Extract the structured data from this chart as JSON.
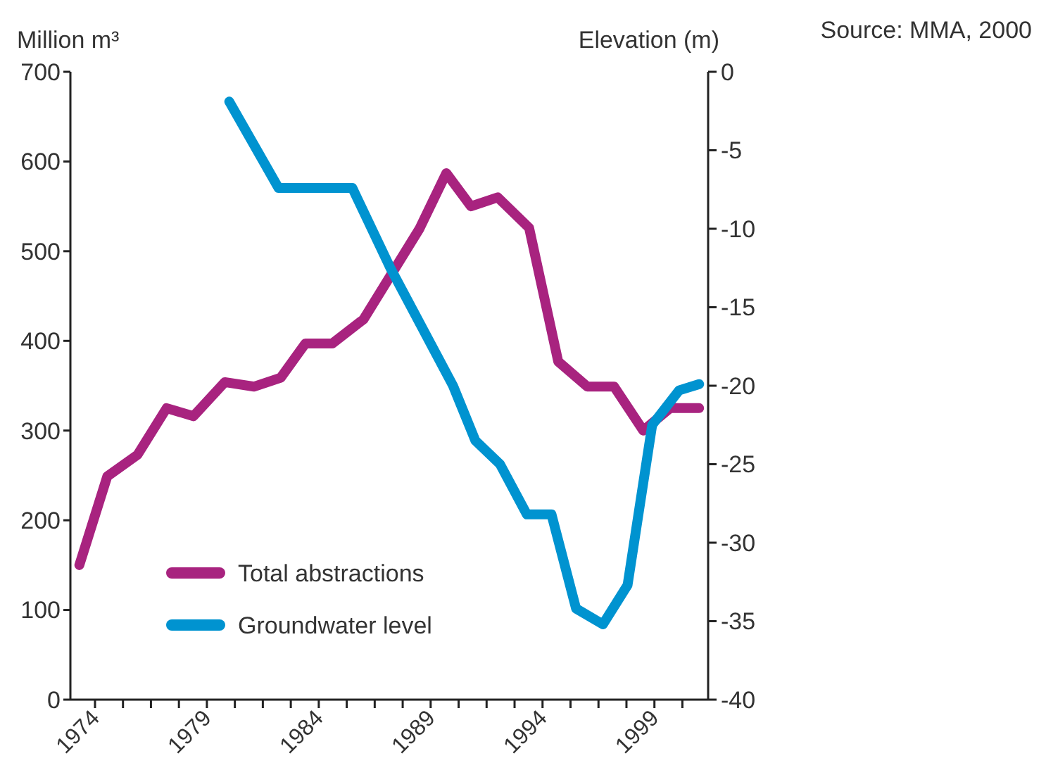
{
  "chart_data": {
    "type": "line",
    "ylabel": "Million m³",
    "y2label": "Elevation (m)",
    "annotations": [
      "Source: MMA, 2000"
    ],
    "xlim": [
      1972.9,
      2001.4
    ],
    "xticks": [
      {
        "value": 1974,
        "label": "1974"
      },
      {
        "value": 1975.25,
        "label": null
      },
      {
        "value": 1976.5,
        "label": null
      },
      {
        "value": 1977.75,
        "label": null
      },
      {
        "value": 1979,
        "label": "1979"
      },
      {
        "value": 1980.25,
        "label": null
      },
      {
        "value": 1981.5,
        "label": null
      },
      {
        "value": 1982.75,
        "label": null
      },
      {
        "value": 1984,
        "label": "1984"
      },
      {
        "value": 1985.25,
        "label": null
      },
      {
        "value": 1986.5,
        "label": null
      },
      {
        "value": 1987.75,
        "label": null
      },
      {
        "value": 1989,
        "label": "1989"
      },
      {
        "value": 1990.25,
        "label": null
      },
      {
        "value": 1991.5,
        "label": null
      },
      {
        "value": 1992.75,
        "label": null
      },
      {
        "value": 1994,
        "label": "1994"
      },
      {
        "value": 1995.25,
        "label": null
      },
      {
        "value": 1996.5,
        "label": null
      },
      {
        "value": 1997.75,
        "label": null
      },
      {
        "value": 1999,
        "label": "1999"
      },
      {
        "value": 2000.25,
        "label": null
      }
    ],
    "ylim": [
      0,
      700
    ],
    "yticks": [
      0,
      100,
      200,
      300,
      400,
      500,
      600,
      700
    ],
    "y2lim": [
      -40,
      0
    ],
    "y2ticks": [
      -40,
      -35,
      -30,
      -25,
      -20,
      -15,
      -10,
      -5,
      0
    ],
    "legend": "bottom left",
    "grid": false,
    "marker": "none",
    "line_style": "solid",
    "series": [
      {
        "name": "Total abstractions",
        "color": "#a8237f",
        "x": [
          1973.3,
          1974.55,
          1975.9,
          1977.2,
          1978.4,
          1979.8,
          1981.1,
          1982.3,
          1983.4,
          1984.6,
          1986.0,
          1988.5,
          1989.7,
          1990.8,
          1992.0,
          1993.4,
          1994.7,
          1996.0,
          1997.2,
          1998.5,
          1999.7,
          2001.0
        ],
        "values": [
          150,
          249,
          273,
          325,
          316,
          354,
          349,
          359,
          397,
          397,
          424,
          525,
          587,
          550,
          560,
          526,
          377,
          349,
          349,
          300,
          325,
          325
        ]
      },
      {
        "name": "Groundwater level",
        "color": "#0093d0",
        "axis": "y2",
        "x": [
          1980.0,
          1982.2,
          1985.5,
          1987.2,
          1990.0,
          1991.0,
          1992.1,
          1993.3,
          1994.4,
          1995.5,
          1996.7,
          1997.8,
          1998.9,
          2000.1,
          2001.0
        ],
        "values": [
          -1.9,
          -7.4,
          -7.4,
          -12.5,
          -20,
          -23.5,
          -25.0,
          -28.2,
          -28.2,
          -34.2,
          -35.2,
          -32.7,
          -22.5,
          -20.3,
          -19.9
        ]
      }
    ]
  }
}
